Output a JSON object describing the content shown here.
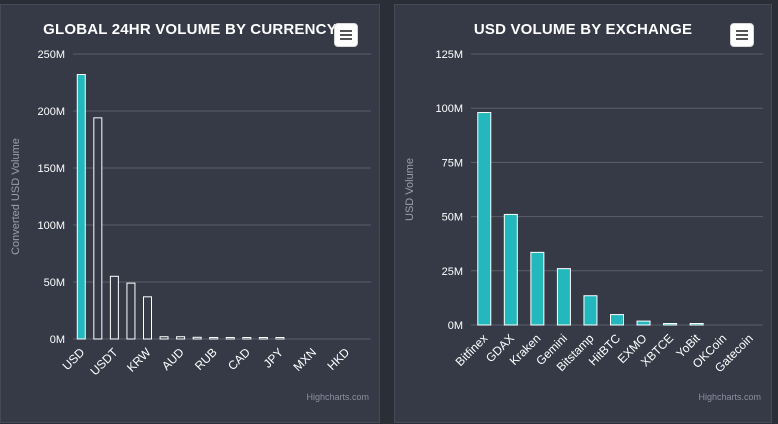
{
  "colors": {
    "accent": "#22b8bd",
    "bar_fill": "#363a47",
    "bar_stroke": "#ffffff",
    "grid": "#5b5f6d",
    "tick_text": "#ffffff",
    "axis_title": "#9a9eac"
  },
  "menu_icon": "hamburger-menu-icon",
  "charts": [
    {
      "title": "GLOBAL 24HR VOLUME BY CURRENCY",
      "credits": "Highcharts.com",
      "menu_icon": "hamburger-menu-icon"
    },
    {
      "title": "USD VOLUME BY EXCHANGE",
      "credits": "Highcharts.com",
      "menu_icon": "hamburger-menu-icon"
    }
  ],
  "chart_data": [
    {
      "type": "bar",
      "title": "GLOBAL 24HR VOLUME BY CURRENCY",
      "xlabel": "",
      "ylabel": "Converted USD Volume",
      "ylim": [
        0,
        250000000
      ],
      "yticks": [
        0,
        50000000,
        100000000,
        150000000,
        200000000,
        250000000
      ],
      "ytick_labels": [
        "0M",
        "50M",
        "100M",
        "150M",
        "200M",
        "250M"
      ],
      "categories": [
        "USD",
        "",
        "USDT",
        "",
        "KRW",
        "",
        "AUD",
        "",
        "RUB",
        "",
        "CAD",
        "",
        "JPY",
        "",
        "MXN",
        "",
        "HKD",
        ""
      ],
      "values": [
        232000000,
        194000000,
        55000000,
        49000000,
        37000000,
        2000000,
        2000000,
        1500000,
        1000000,
        800000,
        700000,
        500000,
        400000,
        0,
        0,
        0,
        0,
        0
      ],
      "highlight_index": 0,
      "grid": true
    },
    {
      "type": "bar",
      "title": "USD VOLUME BY EXCHANGE",
      "xlabel": "",
      "ylabel": "USD Volume",
      "ylim": [
        0,
        125000000
      ],
      "yticks": [
        0,
        25000000,
        50000000,
        75000000,
        100000000,
        125000000
      ],
      "ytick_labels": [
        "0M",
        "25M",
        "50M",
        "75M",
        "100M",
        "125M"
      ],
      "categories": [
        "Bitfinex",
        "GDAX",
        "Kraken",
        "Gemini",
        "Bitstamp",
        "HitBTC",
        "EXMO",
        "XBTCE",
        "YoBit",
        "OKCoin",
        "Gatecoin"
      ],
      "values": [
        98000000,
        51000000,
        33500000,
        26000000,
        13500000,
        4800000,
        1800000,
        400000,
        350000,
        0,
        0
      ],
      "grid": true
    }
  ]
}
